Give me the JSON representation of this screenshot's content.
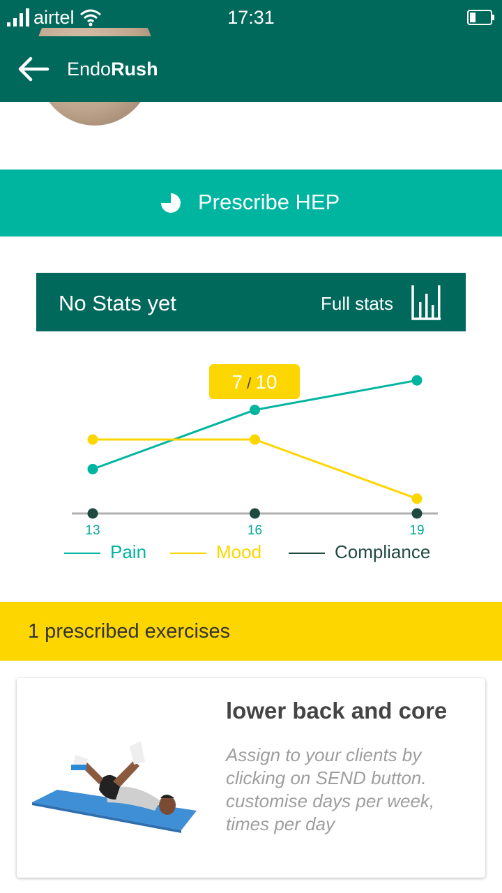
{
  "status_bar": {
    "carrier": "airtel",
    "time": "17:31"
  },
  "app_bar": {
    "title_light": "Endo",
    "title_bold": "Rush"
  },
  "prescribe": {
    "label": "Prescribe HEP",
    "icon": "pie-icon"
  },
  "stats": {
    "empty_label": "No Stats yet",
    "full_label": "Full stats",
    "icon": "bar-chart-icon"
  },
  "chart_data": {
    "type": "line",
    "x": [
      13,
      16,
      19
    ],
    "ylim": [
      0,
      10
    ],
    "series": [
      {
        "name": "Pain",
        "color": "#00b5a0",
        "values": [
          3,
          7,
          9
        ]
      },
      {
        "name": "Mood",
        "color": "#fdd600",
        "values": [
          5,
          5,
          1
        ]
      },
      {
        "name": "Compliance",
        "color": "#1f4a40",
        "values": [
          0,
          0,
          0
        ]
      }
    ],
    "tooltip": {
      "value": "7",
      "max": "10"
    }
  },
  "exercises": {
    "header": "1 prescribed exercises",
    "items": [
      {
        "title": "lower back and core",
        "description": "Assign to your clients by clicking on SEND button. customise days per week, times per day"
      }
    ]
  }
}
